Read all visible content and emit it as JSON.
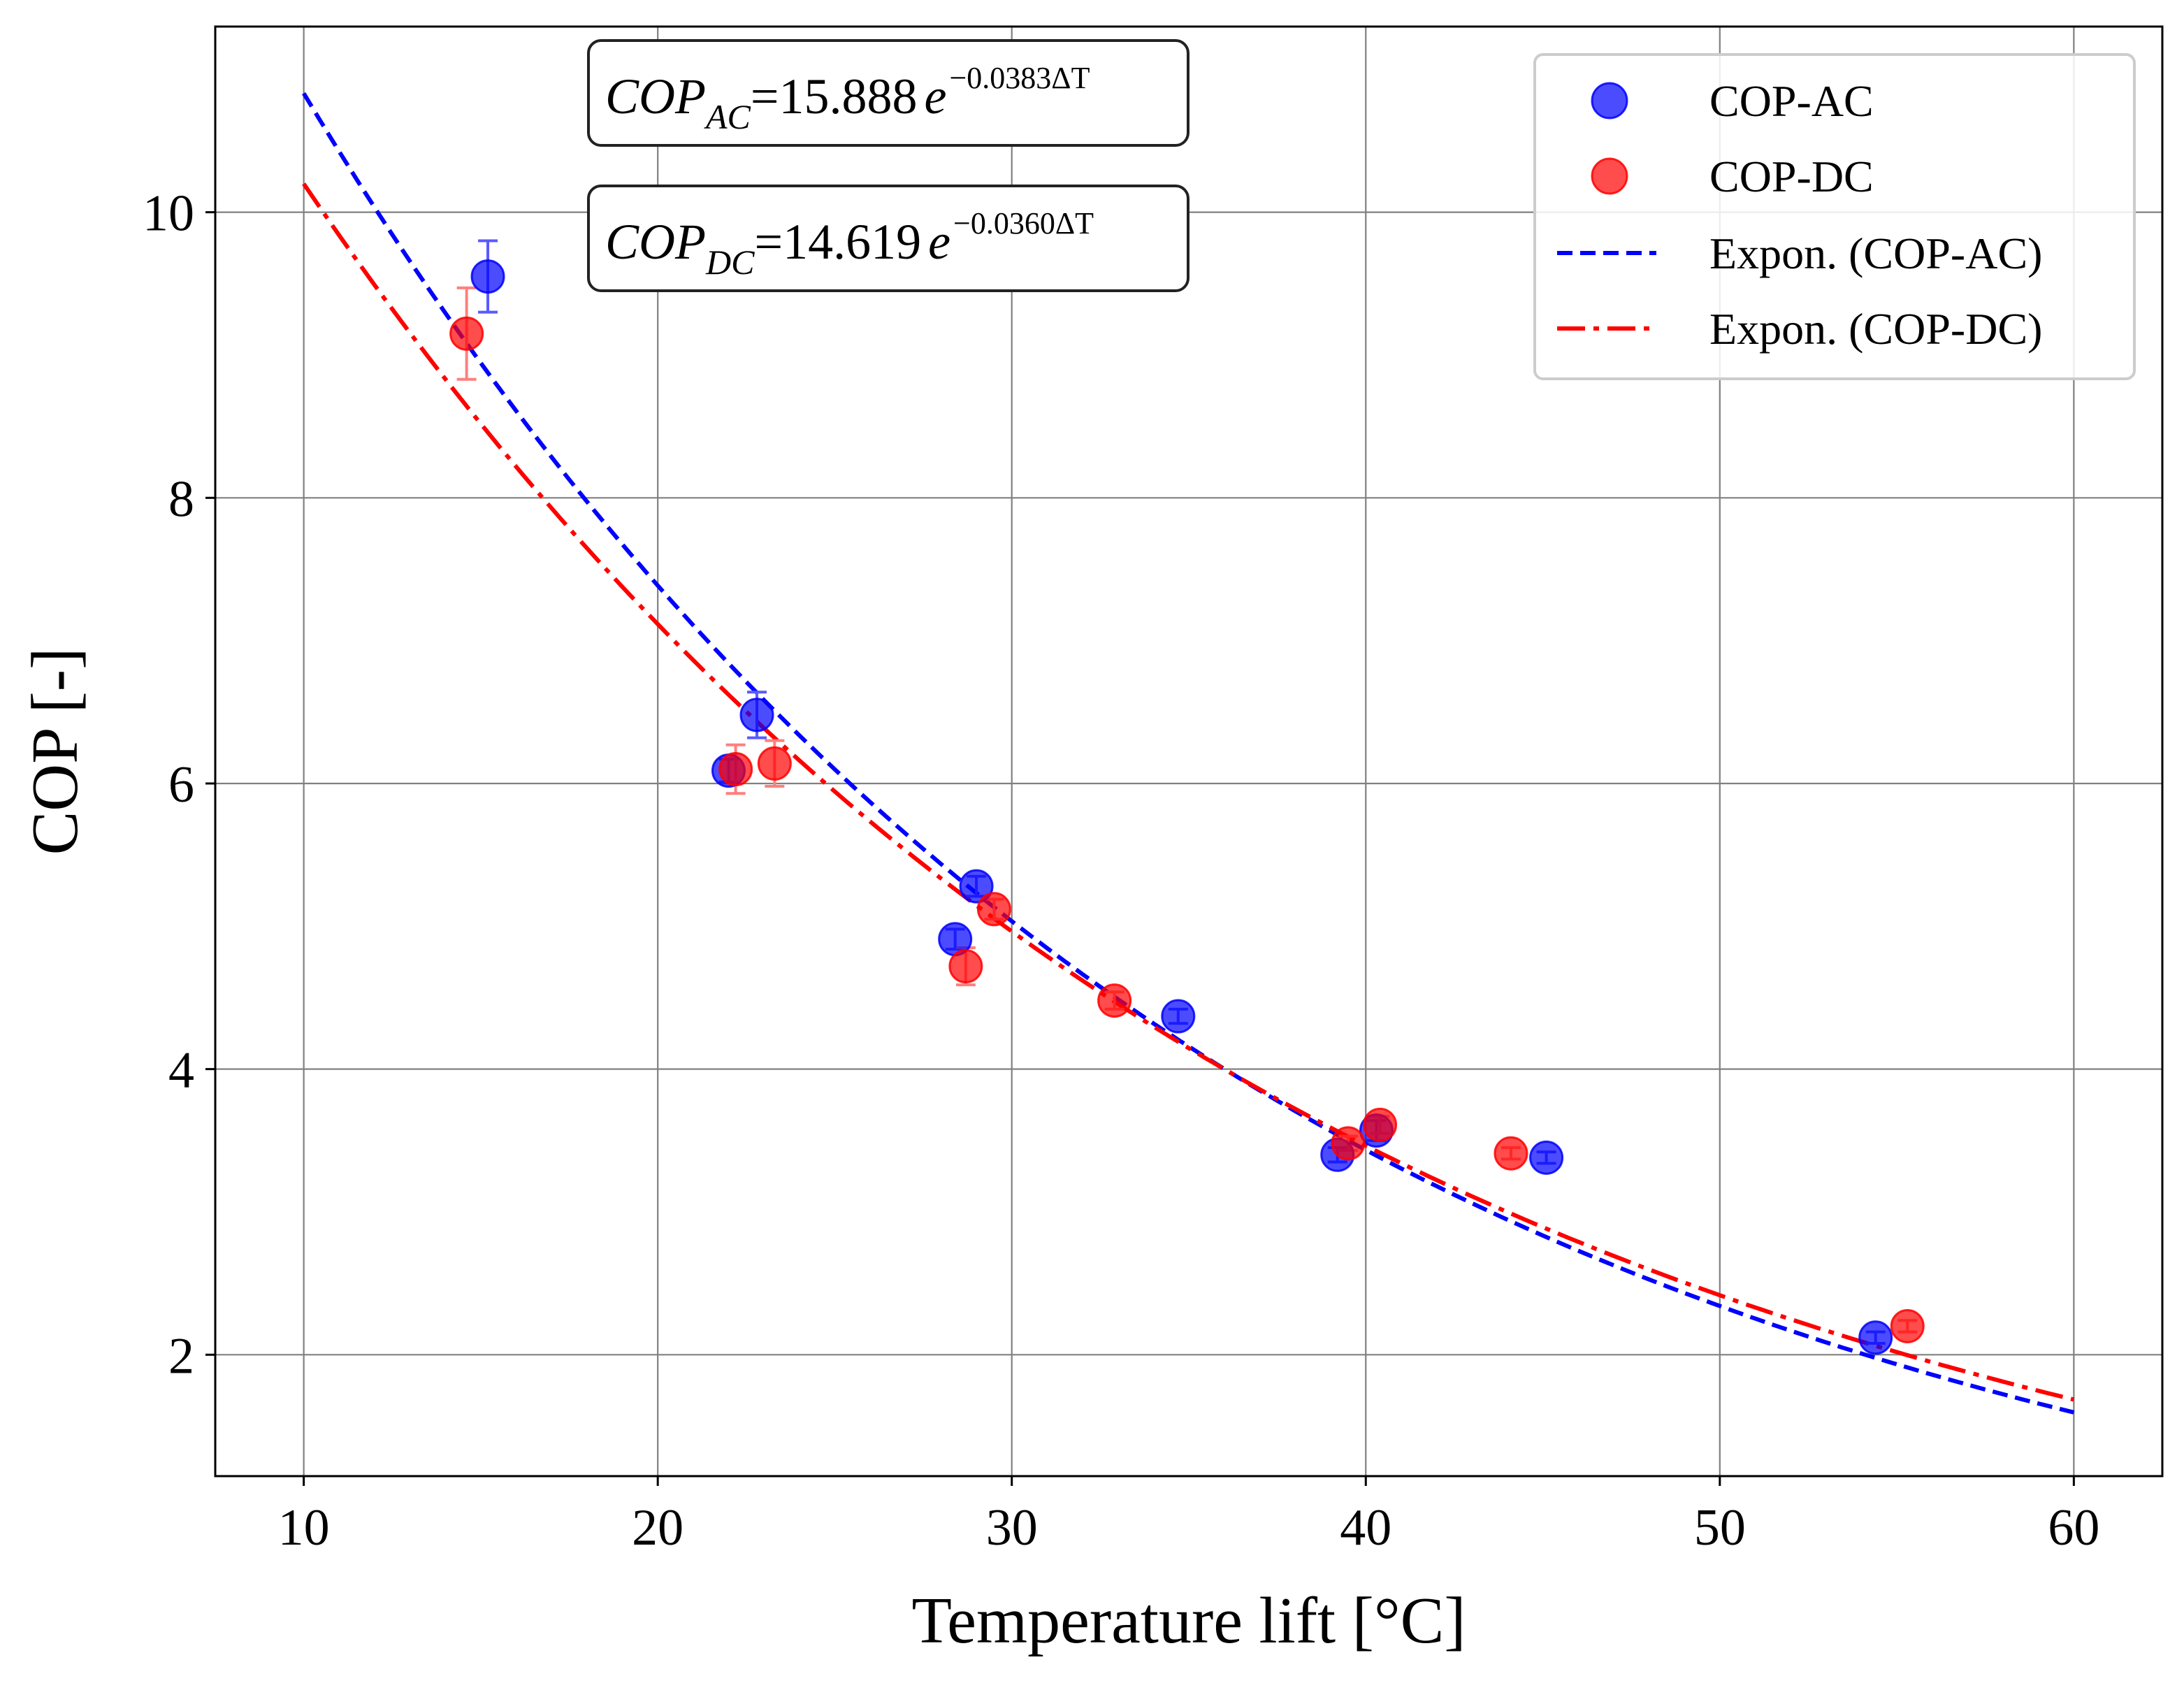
{
  "chart_data": {
    "type": "scatter",
    "xlabel": "Temperature lift [°C]",
    "ylabel": "COP [-]",
    "xlim": [
      7.5,
      62.5
    ],
    "ylim": [
      1.15,
      11.3
    ],
    "xticks": [
      "10",
      "20",
      "30",
      "40",
      "50",
      "60"
    ],
    "yticks": [
      "2",
      "4",
      "6",
      "8",
      "10"
    ],
    "grid": true,
    "legend_position": "top-right",
    "series": [
      {
        "name": "COP-AC",
        "kind": "scatter",
        "color": "#0000ff",
        "points": [
          {
            "x": 15.2,
            "y": 9.55,
            "err": 0.25
          },
          {
            "x": 22.0,
            "y": 6.09,
            "err": 0.08
          },
          {
            "x": 22.8,
            "y": 6.48,
            "err": 0.16
          },
          {
            "x": 28.4,
            "y": 4.91,
            "err": 0.07
          },
          {
            "x": 29.0,
            "y": 5.28,
            "err": 0.07
          },
          {
            "x": 34.7,
            "y": 4.37,
            "err": 0.05
          },
          {
            "x": 39.2,
            "y": 3.4,
            "err": 0.05
          },
          {
            "x": 40.3,
            "y": 3.57,
            "err": 0.07
          },
          {
            "x": 45.1,
            "y": 3.38,
            "err": 0.04
          },
          {
            "x": 54.4,
            "y": 2.12,
            "err": 0.04
          }
        ]
      },
      {
        "name": "COP-DC",
        "kind": "scatter",
        "color": "#ff0000",
        "points": [
          {
            "x": 14.6,
            "y": 9.15,
            "err": 0.32
          },
          {
            "x": 22.2,
            "y": 6.1,
            "err": 0.17
          },
          {
            "x": 23.3,
            "y": 6.14,
            "err": 0.16
          },
          {
            "x": 28.7,
            "y": 4.72,
            "err": 0.13
          },
          {
            "x": 29.5,
            "y": 5.12,
            "err": 0.07
          },
          {
            "x": 32.9,
            "y": 4.48,
            "err": 0.06
          },
          {
            "x": 39.5,
            "y": 3.48,
            "err": 0.05
          },
          {
            "x": 40.4,
            "y": 3.61,
            "err": 0.06
          },
          {
            "x": 44.1,
            "y": 3.41,
            "err": 0.04
          },
          {
            "x": 55.3,
            "y": 2.2,
            "err": 0.04
          }
        ]
      },
      {
        "name": "Expon. (COP-AC)",
        "kind": "fit",
        "color": "#0000ff",
        "dash": "dashed",
        "a": 15.888,
        "b": -0.0383,
        "x_range": [
          10,
          60
        ]
      },
      {
        "name": "Expon. (COP-DC)",
        "kind": "fit",
        "color": "#ff0000",
        "dash": "dashdot",
        "a": 14.619,
        "b": -0.036,
        "x_range": [
          10,
          60
        ]
      }
    ],
    "annotations": [
      {
        "lhs": "COP",
        "sub": "AC",
        "coef": "=15.888",
        "base": "e",
        "exp": "−0.0383ΔT"
      },
      {
        "lhs": "COP",
        "sub": "DC",
        "coef": "=14.619",
        "base": "e",
        "exp": "−0.0360ΔT"
      }
    ]
  }
}
